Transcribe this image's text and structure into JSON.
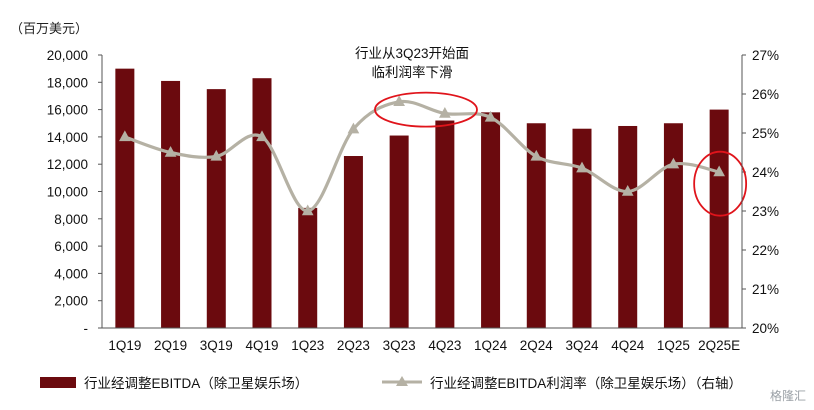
{
  "unit_label": "（百万美元）",
  "annotation_lines": [
    "行业从3Q23开始面",
    "临利润率下滑"
  ],
  "legend": {
    "bar_label": "行业经调整EBITDA（除卫星娱乐场）",
    "line_label": "行业经调整EBITDA利润率（除卫星娱乐场）（右轴）"
  },
  "watermark": "格隆汇",
  "colors": {
    "bar": "#6b0a0e",
    "line": "#b5b1a4",
    "ellipse": "#e0141b",
    "axis": "#555555"
  },
  "chart_data": {
    "type": "bar",
    "categories": [
      "1Q19",
      "2Q19",
      "3Q19",
      "4Q19",
      "1Q23",
      "2Q23",
      "3Q23",
      "4Q23",
      "1Q24",
      "2Q24",
      "3Q24",
      "4Q24",
      "1Q25",
      "2Q25E"
    ],
    "series": [
      {
        "name": "行业经调整EBITDA（除卫星娱乐场）",
        "type": "bar",
        "axis": "left",
        "values": [
          19000,
          18100,
          17500,
          18300,
          8800,
          12600,
          14100,
          15200,
          15800,
          15000,
          14600,
          14800,
          15000,
          16000
        ]
      },
      {
        "name": "行业经调整EBITDA利润率（除卫星娱乐场）（右轴）",
        "type": "line",
        "axis": "right",
        "marker": "triangle",
        "values": [
          24.9,
          24.5,
          24.4,
          24.9,
          23.0,
          25.1,
          25.8,
          25.5,
          25.4,
          24.4,
          24.1,
          23.5,
          24.2,
          24.0
        ]
      }
    ],
    "y_left": {
      "min": 0,
      "max": 20000,
      "step": 2000,
      "tick_labels": [
        "-",
        "2,000",
        "4,000",
        "6,000",
        "8,000",
        "10,000",
        "12,000",
        "14,000",
        "16,000",
        "18,000",
        "20,000"
      ]
    },
    "y_right": {
      "min": 20,
      "max": 27,
      "step": 1,
      "tick_labels": [
        "20%",
        "21%",
        "22%",
        "23%",
        "24%",
        "25%",
        "26%",
        "27%"
      ]
    },
    "highlights": [
      {
        "from": "3Q23",
        "to": "4Q23",
        "axis": "right",
        "center": 25.6
      },
      {
        "at": "2Q25E",
        "axis": "right",
        "center": 23.7
      }
    ],
    "grid": false,
    "legend_position": "bottom"
  }
}
